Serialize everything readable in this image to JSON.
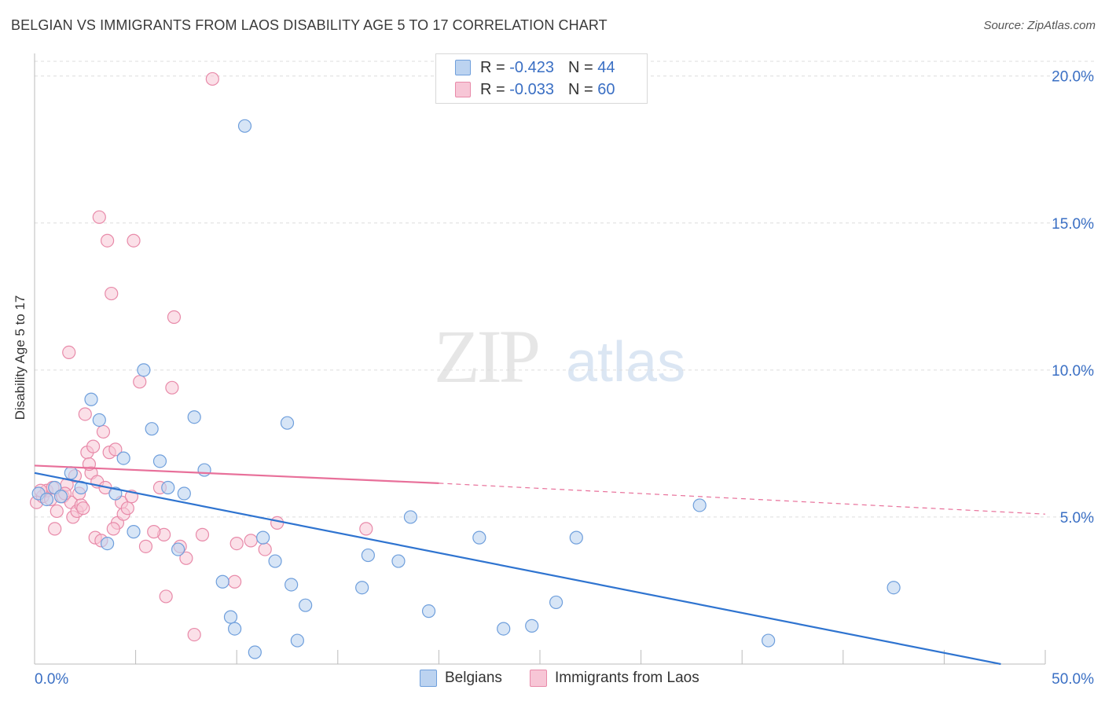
{
  "header": {
    "title": "BELGIAN VS IMMIGRANTS FROM LAOS DISABILITY AGE 5 TO 17 CORRELATION CHART",
    "source": "Source: ZipAtlas.com"
  },
  "watermark": {
    "part1": "ZIP",
    "part2": "atlas"
  },
  "legend": {
    "rows": [
      {
        "r_label": "R =",
        "r_value": "-0.423",
        "n_label": "N =",
        "n_value": "44"
      },
      {
        "r_label": "R =",
        "r_value": "-0.033",
        "n_label": "N =",
        "n_value": "60"
      }
    ]
  },
  "bottom_legend": {
    "series1": "Belgians",
    "series2": "Immigrants from Laos"
  },
  "colors": {
    "blue_fill": "#bcd3f0",
    "blue_stroke": "#6f9fdc",
    "blue_line": "#2f74d0",
    "pink_fill": "#f7c6d6",
    "pink_stroke": "#e88aa9",
    "pink_line": "#e8709a",
    "tick_text": "#3a6fc4",
    "grid": "#dddddd"
  },
  "chart_data": {
    "type": "scatter",
    "title": "BELGIAN VS IMMIGRANTS FROM LAOS DISABILITY AGE 5 TO 17 CORRELATION CHART",
    "xlabel": "",
    "ylabel": "Disability Age 5 to 17",
    "xlim": [
      0,
      50
    ],
    "ylim": [
      0,
      20.5
    ],
    "x_tick_labels": [
      "0.0%",
      "50.0%"
    ],
    "y_ticks": [
      5,
      10,
      15,
      20
    ],
    "y_tick_labels": [
      "5.0%",
      "10.0%",
      "15.0%",
      "20.0%"
    ],
    "grid": true,
    "legend_position": "top-center",
    "series": [
      {
        "name": "Belgians",
        "r": -0.423,
        "n": 44,
        "trend": {
          "x": [
            0,
            47.8
          ],
          "y": [
            6.5,
            0
          ]
        },
        "points": [
          [
            0.2,
            5.8
          ],
          [
            0.6,
            5.6
          ],
          [
            1.0,
            6.0
          ],
          [
            1.3,
            5.7
          ],
          [
            1.8,
            6.5
          ],
          [
            2.3,
            6.0
          ],
          [
            2.8,
            9.0
          ],
          [
            3.2,
            8.3
          ],
          [
            3.6,
            4.1
          ],
          [
            4.0,
            5.8
          ],
          [
            4.4,
            7.0
          ],
          [
            4.9,
            4.5
          ],
          [
            5.4,
            10.0
          ],
          [
            5.8,
            8.0
          ],
          [
            6.2,
            6.9
          ],
          [
            6.6,
            6.0
          ],
          [
            7.1,
            3.9
          ],
          [
            7.4,
            5.8
          ],
          [
            7.9,
            8.4
          ],
          [
            8.4,
            6.6
          ],
          [
            9.3,
            2.8
          ],
          [
            9.7,
            1.6
          ],
          [
            9.9,
            1.2
          ],
          [
            10.4,
            18.3
          ],
          [
            10.9,
            0.4
          ],
          [
            11.3,
            4.3
          ],
          [
            11.9,
            3.5
          ],
          [
            12.5,
            8.2
          ],
          [
            12.7,
            2.7
          ],
          [
            13.0,
            0.8
          ],
          [
            13.4,
            2.0
          ],
          [
            16.2,
            2.6
          ],
          [
            16.5,
            3.7
          ],
          [
            18.0,
            3.5
          ],
          [
            18.6,
            5.0
          ],
          [
            19.5,
            1.8
          ],
          [
            22.0,
            4.3
          ],
          [
            23.2,
            1.2
          ],
          [
            24.6,
            1.3
          ],
          [
            25.8,
            2.1
          ],
          [
            26.8,
            4.3
          ],
          [
            32.9,
            5.4
          ],
          [
            36.3,
            0.8
          ],
          [
            42.5,
            2.6
          ]
        ]
      },
      {
        "name": "Immigrants from Laos",
        "r": -0.033,
        "n": 60,
        "trend_solid": {
          "x": [
            0,
            20
          ],
          "y": [
            6.75,
            6.15
          ]
        },
        "trend_dashed": {
          "x": [
            20,
            50
          ],
          "y": [
            6.15,
            5.1
          ]
        },
        "points": [
          [
            0.1,
            5.5
          ],
          [
            0.4,
            5.7
          ],
          [
            0.6,
            5.9
          ],
          [
            0.8,
            5.6
          ],
          [
            1.0,
            4.6
          ],
          [
            1.1,
            5.2
          ],
          [
            1.4,
            5.7
          ],
          [
            1.6,
            6.1
          ],
          [
            1.7,
            10.6
          ],
          [
            1.8,
            5.5
          ],
          [
            1.9,
            5.0
          ],
          [
            2.0,
            6.4
          ],
          [
            2.1,
            5.2
          ],
          [
            2.2,
            5.8
          ],
          [
            2.3,
            5.4
          ],
          [
            2.5,
            8.5
          ],
          [
            2.6,
            7.2
          ],
          [
            2.8,
            6.5
          ],
          [
            2.9,
            7.4
          ],
          [
            3.0,
            4.3
          ],
          [
            3.1,
            6.2
          ],
          [
            3.2,
            15.2
          ],
          [
            3.3,
            4.2
          ],
          [
            3.4,
            7.9
          ],
          [
            3.5,
            6.0
          ],
          [
            3.6,
            14.4
          ],
          [
            3.7,
            7.2
          ],
          [
            3.8,
            12.6
          ],
          [
            4.0,
            7.3
          ],
          [
            4.1,
            4.8
          ],
          [
            4.3,
            5.5
          ],
          [
            4.4,
            5.1
          ],
          [
            4.6,
            5.3
          ],
          [
            4.9,
            14.4
          ],
          [
            5.2,
            9.6
          ],
          [
            5.5,
            4.0
          ],
          [
            6.2,
            6.0
          ],
          [
            6.4,
            4.4
          ],
          [
            6.5,
            2.3
          ],
          [
            6.8,
            9.4
          ],
          [
            6.9,
            11.8
          ],
          [
            7.2,
            4.0
          ],
          [
            7.9,
            1.0
          ],
          [
            8.3,
            4.4
          ],
          [
            8.8,
            19.9
          ],
          [
            9.9,
            2.8
          ],
          [
            10.7,
            4.2
          ],
          [
            11.4,
            3.9
          ],
          [
            16.4,
            4.6
          ],
          [
            0.3,
            5.9
          ],
          [
            0.9,
            6.0
          ],
          [
            1.5,
            5.8
          ],
          [
            2.4,
            5.3
          ],
          [
            2.7,
            6.8
          ],
          [
            3.9,
            4.6
          ],
          [
            4.8,
            5.7
          ],
          [
            5.9,
            4.5
          ],
          [
            7.5,
            3.6
          ],
          [
            10.0,
            4.1
          ],
          [
            12.0,
            4.8
          ]
        ]
      }
    ]
  }
}
